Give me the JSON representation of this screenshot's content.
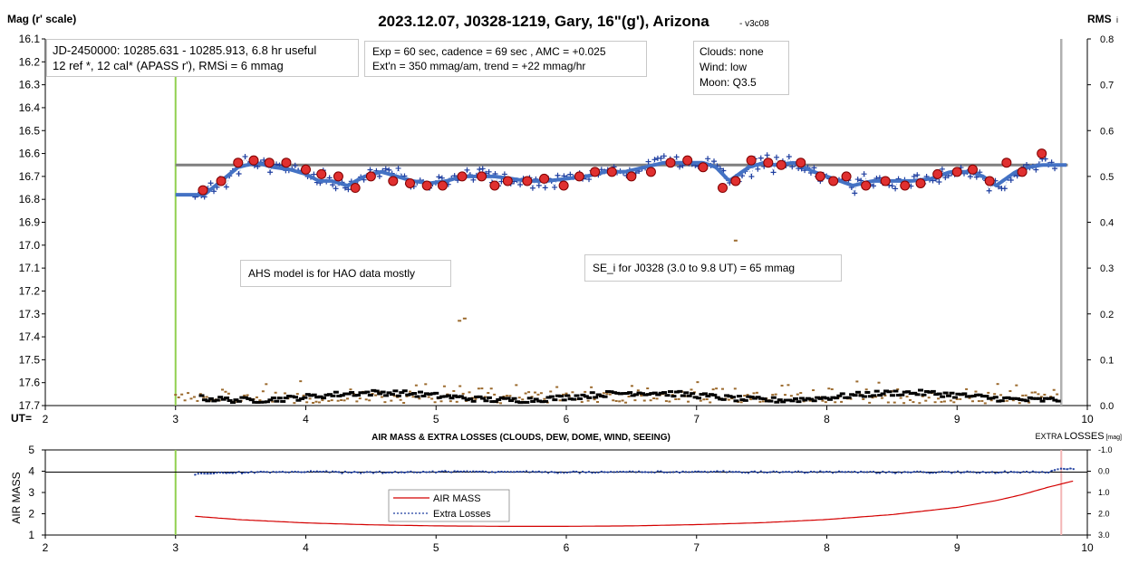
{
  "header": {
    "title": "2023.12.07, J0328-1219, Gary, 16\"(g'), Arizona",
    "version": "- v3c08",
    "y_left_label": "Mag (r' scale)",
    "y_right_label": "RMS",
    "y_right_label_suffix": "i",
    "x_label": "UT="
  },
  "info_boxes": {
    "jd_line1": "JD-2450000: 10285.631 - 10285.913, 6.8 hr useful",
    "jd_line2": "12 ref *, 12 cal*  (APASS r'), RMSi = 6 mmag",
    "exp_line1": "Exp = 60 sec, cadence = 69 sec , AMC = +0.025",
    "exp_line2": "Ext'n = 350 mmag/am, trend = +22 mmag/hr",
    "clouds": "Clouds:  none",
    "wind": "Wind:   low",
    "moon": "Moon:  Q3.5",
    "ahs_note": "AHS model is for HAO data mostly",
    "se_note": "SE_i for J0328 (3.0 to 9.8 UT) = 65 mmag"
  },
  "lower": {
    "title": "AIR MASS & EXTRA LOSSES (CLOUDS, DEW, DOME, WIND, SEEING)",
    "right_label_prefix": "EXTRA ",
    "right_label_main": "LOSSES",
    "right_label_unit": " [mag]",
    "y_label": "AIR MASS",
    "legend_airmass": "AIR MASS",
    "legend_losses": "Extra Losses"
  },
  "chart_data": [
    {
      "type": "scatter",
      "title": "2023.12.07, J0328-1219, Gary, 16\"(g'), Arizona",
      "xlabel": "UT=",
      "ylabel": "Mag (r' scale)",
      "y2label": "RMS",
      "xlim": [
        2,
        10
      ],
      "ylim": [
        17.7,
        16.1
      ],
      "y2lim": [
        0.0,
        0.8
      ],
      "x_ticks": [
        "2",
        "3",
        "4",
        "5",
        "6",
        "7",
        "8",
        "9",
        "10"
      ],
      "y_ticks": [
        "16.1",
        "16.2",
        "16.3",
        "16.4",
        "16.5",
        "16.6",
        "16.7",
        "16.8",
        "16.9",
        "17.0",
        "17.1",
        "17.2",
        "17.3",
        "17.4",
        "17.5",
        "17.6",
        "17.7"
      ],
      "y2_ticks": [
        "0.8",
        "0.7",
        "0.6",
        "0.5",
        "0.4",
        "0.3",
        "0.2",
        "0.1",
        "0.0"
      ],
      "vertical_markers": {
        "start": 3.0,
        "end": 9.8
      },
      "reference_level": 16.65,
      "series": [
        {
          "color": "#4472c4",
          "x": [
            3.22,
            3.35,
            3.48,
            3.62,
            3.75,
            3.88,
            4.0,
            4.1,
            4.2,
            4.32,
            4.45,
            4.58,
            4.7,
            4.82,
            4.95,
            5.08,
            5.2,
            5.32,
            5.45,
            5.58,
            5.7,
            5.85,
            6.0,
            6.15,
            6.3,
            6.45,
            6.6,
            6.75,
            6.9,
            7.05,
            7.15,
            7.25,
            7.4,
            7.52,
            7.6,
            7.75,
            7.9,
            8.0,
            8.1,
            8.2,
            8.35,
            8.5,
            8.65,
            8.8,
            8.95,
            9.1,
            9.2,
            9.3,
            9.45,
            9.55,
            9.65,
            9.75
          ],
          "values": [
            16.78,
            16.72,
            16.66,
            16.64,
            16.66,
            16.67,
            16.69,
            16.72,
            16.72,
            16.74,
            16.7,
            16.68,
            16.7,
            16.72,
            16.73,
            16.72,
            16.7,
            16.7,
            16.7,
            16.71,
            16.72,
            16.72,
            16.71,
            16.7,
            16.68,
            16.68,
            16.66,
            16.64,
            16.64,
            16.64,
            16.66,
            16.72,
            16.66,
            16.64,
            16.65,
            16.64,
            16.68,
            16.7,
            16.72,
            16.74,
            16.72,
            16.72,
            16.72,
            16.71,
            16.68,
            16.68,
            16.7,
            16.74,
            16.68,
            16.66,
            16.65,
            16.65
          ]
        },
        {
          "color": "#c00000",
          "x": [
            3.21,
            3.35,
            3.48,
            3.6,
            3.72,
            3.85,
            4.0,
            4.12,
            4.25,
            4.38,
            4.5,
            4.67,
            4.8,
            4.93,
            5.05,
            5.2,
            5.35,
            5.45,
            5.55,
            5.7,
            5.83,
            5.98,
            6.1,
            6.22,
            6.35,
            6.5,
            6.65,
            6.8,
            6.93,
            7.05,
            7.2,
            7.3,
            7.42,
            7.55,
            7.65,
            7.8,
            7.95,
            8.05,
            8.15,
            8.3,
            8.45,
            8.6,
            8.72,
            8.85,
            9.0,
            9.12,
            9.25,
            9.38,
            9.5,
            9.65
          ],
          "values": [
            16.76,
            16.72,
            16.64,
            16.63,
            16.64,
            16.64,
            16.67,
            16.69,
            16.7,
            16.75,
            16.7,
            16.72,
            16.73,
            16.74,
            16.74,
            16.7,
            16.7,
            16.74,
            16.72,
            16.72,
            16.71,
            16.74,
            16.7,
            16.68,
            16.68,
            16.7,
            16.68,
            16.64,
            16.63,
            16.66,
            16.75,
            16.72,
            16.63,
            16.64,
            16.65,
            16.64,
            16.7,
            16.72,
            16.7,
            16.74,
            16.72,
            16.74,
            16.73,
            16.69,
            16.68,
            16.67,
            16.72,
            16.64,
            16.68,
            16.6
          ]
        }
      ]
    },
    {
      "type": "line",
      "title": "AIR MASS & EXTRA LOSSES (CLOUDS, DEW, DOME, WIND, SEEING)",
      "xlabel": "",
      "ylabel": "AIR MASS",
      "y2label": "EXTRA LOSSES [mag]",
      "xlim": [
        2,
        10
      ],
      "ylim": [
        1,
        5
      ],
      "y2lim": [
        3.0,
        -1.0
      ],
      "x_ticks": [
        "2",
        "3",
        "4",
        "5",
        "6",
        "7",
        "8",
        "9",
        "10"
      ],
      "y_ticks": [
        "5",
        "4",
        "3",
        "2",
        "1"
      ],
      "y2_ticks": [
        "-1.0",
        "0.0",
        "1.0",
        "2.0",
        "3.0"
      ],
      "series": [
        {
          "name": "AIR MASS",
          "color": "#d40000",
          "x": [
            3.15,
            3.5,
            4.0,
            4.5,
            5.0,
            5.5,
            6.0,
            6.5,
            7.0,
            7.5,
            8.0,
            8.5,
            9.0,
            9.3,
            9.5,
            9.7,
            9.9
          ],
          "values": [
            1.88,
            1.72,
            1.57,
            1.48,
            1.43,
            1.41,
            1.41,
            1.43,
            1.49,
            1.58,
            1.73,
            1.96,
            2.3,
            2.62,
            2.9,
            3.25,
            3.55
          ]
        },
        {
          "name": "Extra Losses",
          "color": "#1f3fa0",
          "x": [
            3.15,
            3.5,
            4.0,
            4.5,
            5.0,
            5.5,
            6.0,
            6.5,
            7.0,
            7.5,
            8.0,
            8.5,
            9.0,
            9.3,
            9.5,
            9.7,
            9.8,
            9.9
          ],
          "values": [
            0.12,
            0.05,
            0.02,
            0.05,
            0.03,
            0.02,
            0.05,
            0.04,
            0.03,
            0.04,
            0.03,
            0.05,
            0.04,
            0.06,
            0.03,
            0.05,
            -0.15,
            -0.08
          ]
        }
      ]
    }
  ]
}
